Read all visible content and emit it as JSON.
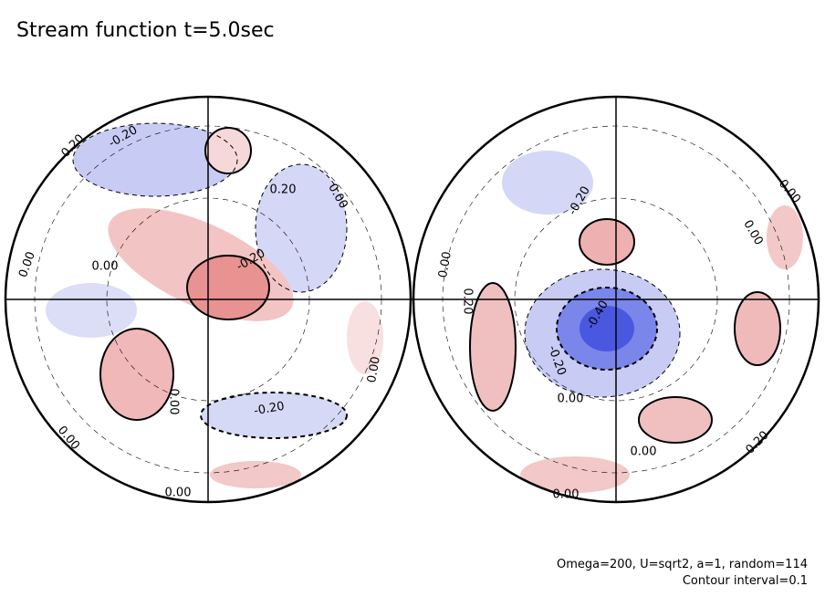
{
  "title": "Stream function t=5.0sec",
  "notes": [
    "Omega=200, U=sqrt2, a=1, random=114",
    "Contour interval=0.1"
  ],
  "contour_labels": [
    "0.20",
    "-0.20",
    "0.20",
    "0.00",
    "0.00",
    "0.00",
    "-0.20",
    "0.00",
    "0.00",
    "-0.20",
    "0.00",
    "0.00",
    "-0.20",
    "0.00",
    "0.00",
    "0.00",
    "0.20",
    "-0.40",
    "-0.20",
    "0.00",
    "0.00",
    "0.20",
    "0.00"
  ]
}
